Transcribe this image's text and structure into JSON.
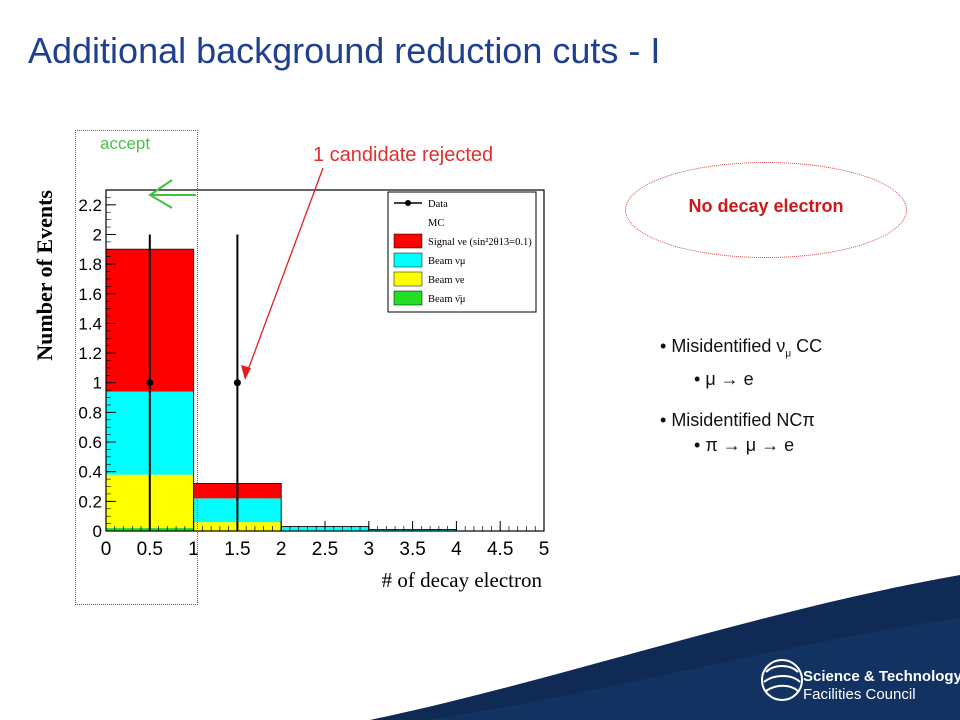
{
  "slide": {
    "title": "Additional background reduction cuts - I",
    "accept_label": "accept",
    "rejected_label": "1 candidate rejected",
    "ellipse_label": "No decay electron",
    "bullets": [
      {
        "level": 1,
        "text": "Misidentified ν",
        "sub": "μ",
        "tail": " CC"
      },
      {
        "level": 2,
        "text": "μ → e"
      },
      {
        "level": 1,
        "text": "Misidentified NCπ"
      },
      {
        "level": 2,
        "text": "π → μ → e"
      }
    ],
    "logo": {
      "line1": "Science & Technology",
      "line2": "Facilities Council"
    }
  },
  "chart_data": {
    "type": "bar",
    "stacked": true,
    "xlabel": "# of decay electron",
    "ylabel": "Number of Events",
    "xlim": [
      0,
      5
    ],
    "ylim": [
      0,
      2.3
    ],
    "x_ticks": [
      "0",
      "0.5",
      "1",
      "1.5",
      "2",
      "2.5",
      "3",
      "3.5",
      "4",
      "4.5",
      "5"
    ],
    "y_ticks": [
      "0",
      "0.2",
      "0.4",
      "0.6",
      "0.8",
      "1",
      "1.2",
      "1.4",
      "1.6",
      "1.8",
      "2",
      "2.2"
    ],
    "bins": [
      [
        0,
        1
      ],
      [
        1,
        2
      ],
      [
        2,
        3
      ],
      [
        3,
        4
      ],
      [
        4,
        5
      ]
    ],
    "series": [
      {
        "name": "Beam ν̄μ",
        "color": "#22dd22",
        "values": [
          0.02,
          0.0,
          0.0,
          0.0,
          0.0
        ]
      },
      {
        "name": "Beam νe",
        "color": "#ffff00",
        "values": [
          0.36,
          0.06,
          0.0,
          0.0,
          0.0
        ]
      },
      {
        "name": "Beam νμ",
        "color": "#00ffff",
        "values": [
          0.56,
          0.16,
          0.03,
          0.01,
          0.0
        ]
      },
      {
        "name": "Signal νe (sin²2θ13=0.1)",
        "color": "#ff0000",
        "values": [
          0.96,
          0.1,
          0.0,
          0.0,
          0.0
        ]
      }
    ],
    "data_points": [
      {
        "x": 0.5,
        "y": 1,
        "err_low": 1,
        "err_high": 1
      },
      {
        "x": 1.5,
        "y": 1,
        "err_low": 1,
        "err_high": 1
      }
    ],
    "legend": {
      "placement": "top-right",
      "entries": [
        {
          "label": "Data",
          "kind": "data"
        },
        {
          "label": "MC",
          "kind": "header"
        },
        {
          "label": "Signal νe (sin²2θ13=0.1)",
          "kind": "fill",
          "color": "#ff0000"
        },
        {
          "label": "Beam νμ",
          "kind": "fill",
          "color": "#00ffff"
        },
        {
          "label": "Beam νe",
          "kind": "fill",
          "color": "#ffff00"
        },
        {
          "label": "Beam ν̄μ",
          "kind": "fill",
          "color": "#22dd22"
        }
      ]
    }
  }
}
